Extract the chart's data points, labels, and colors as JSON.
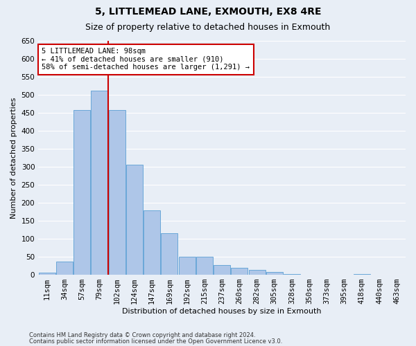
{
  "title": "5, LITTLEMEAD LANE, EXMOUTH, EX8 4RE",
  "subtitle": "Size of property relative to detached houses in Exmouth",
  "xlabel": "Distribution of detached houses by size in Exmouth",
  "ylabel": "Number of detached properties",
  "categories": [
    "11sqm",
    "34sqm",
    "57sqm",
    "79sqm",
    "102sqm",
    "124sqm",
    "147sqm",
    "169sqm",
    "192sqm",
    "215sqm",
    "237sqm",
    "260sqm",
    "282sqm",
    "305sqm",
    "328sqm",
    "350sqm",
    "373sqm",
    "395sqm",
    "418sqm",
    "440sqm",
    "463sqm"
  ],
  "values": [
    5,
    37,
    457,
    511,
    457,
    305,
    179,
    116,
    50,
    50,
    27,
    20,
    14,
    8,
    3,
    1,
    0,
    0,
    3,
    1,
    0
  ],
  "bar_color": "#aec6e8",
  "bar_edgecolor": "#5a9fd4",
  "vline_color": "#cc0000",
  "annotation_text": "5 LITTLEMEAD LANE: 98sqm\n← 41% of detached houses are smaller (910)\n58% of semi-detached houses are larger (1,291) →",
  "annotation_box_edgecolor": "#cc0000",
  "annotation_box_facecolor": "#ffffff",
  "ylim": [
    0,
    650
  ],
  "yticks": [
    0,
    50,
    100,
    150,
    200,
    250,
    300,
    350,
    400,
    450,
    500,
    550,
    600,
    650
  ],
  "background_color": "#e8eef6",
  "grid_color": "#ffffff",
  "footer_line1": "Contains HM Land Registry data © Crown copyright and database right 2024.",
  "footer_line2": "Contains public sector information licensed under the Open Government Licence v3.0.",
  "title_fontsize": 10,
  "subtitle_fontsize": 9,
  "axis_label_fontsize": 8,
  "tick_fontsize": 7.5,
  "annotation_fontsize": 7.5
}
